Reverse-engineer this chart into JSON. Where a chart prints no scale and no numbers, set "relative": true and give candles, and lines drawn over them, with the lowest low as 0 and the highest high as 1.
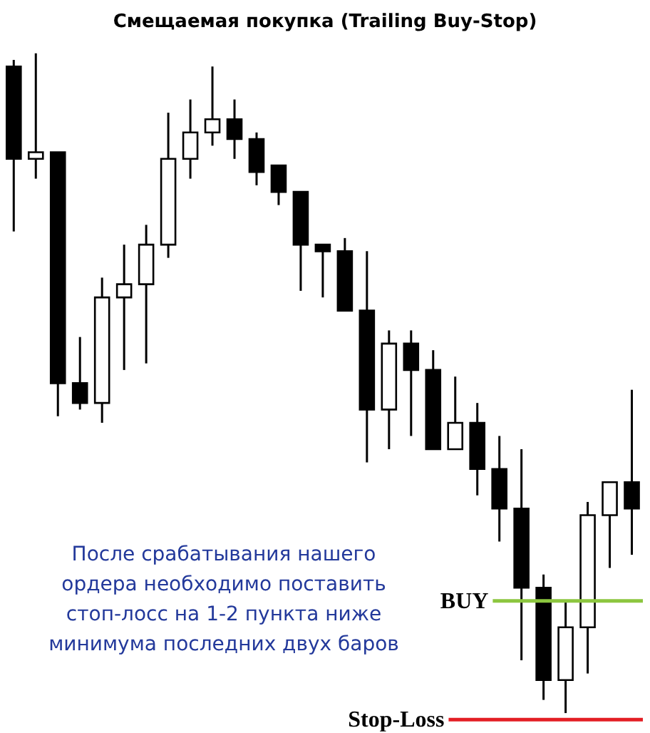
{
  "chart_data": {
    "type": "candlestick",
    "relative": true,
    "title": "Смещаемая покупка (Trailing Buy-Stop)",
    "categories": [
      null,
      null,
      null,
      null,
      null,
      null,
      null,
      null,
      null,
      null,
      null,
      null,
      null,
      null,
      null,
      null,
      null,
      null,
      null,
      null,
      null,
      null,
      null,
      null,
      null,
      null,
      null,
      null,
      null
    ],
    "ohlc": [
      [
        0.98,
        0.99,
        0.73,
        0.84
      ],
      [
        0.84,
        1.0,
        0.81,
        0.85
      ],
      [
        0.85,
        0.85,
        0.45,
        0.5
      ],
      [
        0.5,
        0.57,
        0.46,
        0.47
      ],
      [
        0.47,
        0.66,
        0.44,
        0.63
      ],
      [
        0.63,
        0.71,
        0.52,
        0.65
      ],
      [
        0.65,
        0.74,
        0.53,
        0.71
      ],
      [
        0.71,
        0.91,
        0.69,
        0.84
      ],
      [
        0.84,
        0.93,
        0.81,
        0.88
      ],
      [
        0.88,
        0.98,
        0.86,
        0.9
      ],
      [
        0.9,
        0.93,
        0.84,
        0.87
      ],
      [
        0.87,
        0.88,
        0.8,
        0.82
      ],
      [
        0.83,
        0.83,
        0.77,
        0.79
      ],
      [
        0.79,
        0.79,
        0.64,
        0.71
      ],
      [
        0.71,
        0.71,
        0.63,
        0.7
      ],
      [
        0.7,
        0.72,
        0.61,
        0.61
      ],
      [
        0.61,
        0.7,
        0.38,
        0.46
      ],
      [
        0.46,
        0.58,
        0.4,
        0.56
      ],
      [
        0.56,
        0.58,
        0.42,
        0.52
      ],
      [
        0.52,
        0.55,
        0.4,
        0.4
      ],
      [
        0.4,
        0.51,
        0.4,
        0.44
      ],
      [
        0.44,
        0.47,
        0.33,
        0.37
      ],
      [
        0.37,
        0.42,
        0.26,
        0.31
      ],
      [
        0.31,
        0.4,
        0.08,
        0.19
      ],
      [
        0.19,
        0.21,
        0.02,
        0.05
      ],
      [
        0.05,
        0.17,
        0.0,
        0.13
      ],
      [
        0.13,
        0.32,
        0.06,
        0.3
      ],
      [
        0.3,
        0.35,
        0.22,
        0.35
      ],
      [
        0.35,
        0.49,
        0.24,
        0.31
      ]
    ],
    "ref_lines": [
      {
        "axis": "y",
        "value": 0.17,
        "label": "BUY",
        "color": "#8cc63f"
      },
      {
        "axis": "y",
        "value": -0.01,
        "label": "Stop-Loss",
        "color": "#e31e24"
      }
    ],
    "annotations": [
      "После срабатывания нашего\nордера необходимо поставить\nстоп-лосс на 1-2 пункта ниже\nминимума последних двух баров"
    ]
  }
}
